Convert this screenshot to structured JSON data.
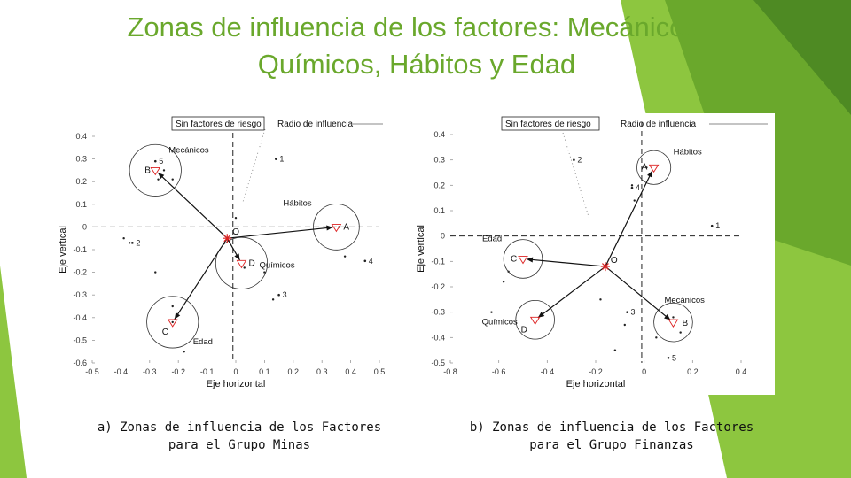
{
  "slide": {
    "title_line1": "Zonas de influencia de los factores: Mecánicos,",
    "title_line2": "Químicos, Hábitos y Edad",
    "accent_colors": [
      "#8dc63f",
      "#6aa82c",
      "#4e8a23"
    ]
  },
  "captions": {
    "a_line1": "a) Zonas de influencia de los Factores",
    "a_line2": "para el Grupo Minas",
    "b_line1": "b) Zonas de influencia de los Factores",
    "b_line2": "para el Grupo Finanzas"
  },
  "chart_data": [
    {
      "type": "scatter",
      "xlabel": "Eje horizontal",
      "ylabel": "Eje vertical",
      "xlim": [
        -0.5,
        0.5
      ],
      "ylim": [
        -0.6,
        0.4
      ],
      "xticks": [
        "-0.5",
        "-0.4",
        "-0.3",
        "-0.2",
        "-0.1",
        "0",
        "0.1",
        "0.2",
        "0.3",
        "0.4",
        "0.5"
      ],
      "yticks": [
        "0.4",
        "0.3",
        "0.2",
        "0.1",
        "0",
        "-0.1",
        "-0.2",
        "-0.3",
        "-0.4",
        "-0.5",
        "-0.6"
      ],
      "legend": [
        "Sin factores de riesgo",
        "Radio de influencia"
      ],
      "origin": {
        "label": "O",
        "x": -0.03,
        "y": -0.05
      },
      "reference_lines": {
        "x": -0.01,
        "y": 0.0
      },
      "factors": [
        {
          "label": "B",
          "name": "Mecánicos",
          "x": -0.28,
          "y": 0.25,
          "radius": 0.09
        },
        {
          "label": "A",
          "name": "Hábitos",
          "x": 0.35,
          "y": 0.0,
          "radius": 0.08
        },
        {
          "label": "D",
          "name": "Químicos",
          "x": 0.02,
          "y": -0.16,
          "radius": 0.09
        },
        {
          "label": "C",
          "name": "Edad",
          "x": -0.22,
          "y": -0.42,
          "radius": 0.09
        }
      ],
      "labeled_points": [
        {
          "label": "1",
          "x": 0.14,
          "y": 0.3
        },
        {
          "label": "2",
          "x": -0.36,
          "y": -0.07
        },
        {
          "label": "3",
          "x": 0.15,
          "y": -0.3
        },
        {
          "label": "4",
          "x": 0.45,
          "y": -0.15
        },
        {
          "label": "5",
          "x": -0.28,
          "y": 0.29
        }
      ],
      "points": [
        {
          "x": -0.25,
          "y": 0.25
        },
        {
          "x": -0.27,
          "y": 0.21
        },
        {
          "x": -0.22,
          "y": 0.21
        },
        {
          "x": -0.39,
          "y": -0.05
        },
        {
          "x": -0.37,
          "y": -0.07
        },
        {
          "x": -0.28,
          "y": -0.2
        },
        {
          "x": -0.22,
          "y": -0.35
        },
        {
          "x": -0.22,
          "y": -0.42
        },
        {
          "x": -0.18,
          "y": -0.55
        },
        {
          "x": 0.13,
          "y": -0.32
        },
        {
          "x": 0.1,
          "y": -0.2
        },
        {
          "x": 0.03,
          "y": -0.18
        },
        {
          "x": 0.0,
          "y": 0.04
        },
        {
          "x": 0.36,
          "y": 0.0
        },
        {
          "x": 0.38,
          "y": -0.13
        }
      ]
    },
    {
      "type": "scatter",
      "xlabel": "Eje horizontal",
      "ylabel": "Eje vertical",
      "xlim": [
        -0.8,
        0.4
      ],
      "ylim": [
        -0.5,
        0.4
      ],
      "xticks": [
        "-0.8",
        "-0.6",
        "-0.4",
        "-0.2",
        "0",
        "0.2",
        "0.4"
      ],
      "yticks": [
        "0.4",
        "0.3",
        "0.2",
        "0.1",
        "0",
        "-0.1",
        "-0.2",
        "-0.3",
        "-0.4",
        "-0.5"
      ],
      "legend": [
        "Sin factores de riesgo",
        "Radio de influencia"
      ],
      "origin": {
        "label": "O",
        "x": -0.16,
        "y": -0.12
      },
      "reference_lines": {
        "x": -0.01,
        "y": 0.0
      },
      "factors": [
        {
          "label": "A",
          "name": "Hábitos",
          "x": 0.04,
          "y": 0.27,
          "radius": 0.07
        },
        {
          "label": "C",
          "name": "Edad",
          "x": -0.5,
          "y": -0.09,
          "radius": 0.08
        },
        {
          "label": "D",
          "name": "Químicos",
          "x": -0.45,
          "y": -0.33,
          "radius": 0.08
        },
        {
          "label": "B",
          "name": "Mecánicos",
          "x": 0.12,
          "y": -0.34,
          "radius": 0.08
        }
      ],
      "labeled_points": [
        {
          "label": "1",
          "x": 0.28,
          "y": 0.04
        },
        {
          "label": "2",
          "x": -0.29,
          "y": 0.3
        },
        {
          "label": "3",
          "x": -0.07,
          "y": -0.3
        },
        {
          "label": "4",
          "x": -0.05,
          "y": 0.19
        },
        {
          "label": "5",
          "x": 0.1,
          "y": -0.48
        }
      ],
      "points": [
        {
          "x": -0.05,
          "y": 0.2
        },
        {
          "x": -0.04,
          "y": 0.14
        },
        {
          "x": 0.01,
          "y": 0.27
        },
        {
          "x": -0.56,
          "y": -0.14
        },
        {
          "x": -0.58,
          "y": -0.18
        },
        {
          "x": -0.63,
          "y": -0.3
        },
        {
          "x": -0.18,
          "y": -0.25
        },
        {
          "x": -0.08,
          "y": -0.35
        },
        {
          "x": 0.05,
          "y": -0.4
        },
        {
          "x": -0.12,
          "y": -0.45
        },
        {
          "x": 0.12,
          "y": -0.32
        },
        {
          "x": 0.15,
          "y": -0.38
        }
      ]
    }
  ]
}
